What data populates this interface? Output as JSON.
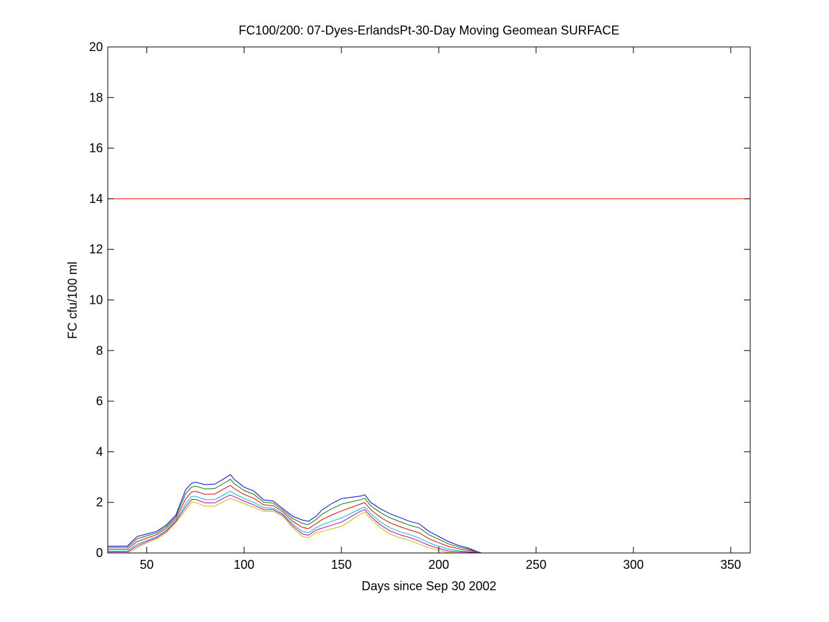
{
  "chart_data": {
    "type": "line",
    "title": "FC100/200: 07-Dyes-ErlandsPt-30-Day Moving Geomean SURFACE",
    "xlabel": "Days since Sep 30 2002",
    "ylabel": "FC cfu/100 ml",
    "xlim": [
      30,
      360
    ],
    "ylim": [
      0,
      20
    ],
    "xticks": [
      50,
      100,
      150,
      200,
      250,
      300,
      350
    ],
    "yticks": [
      0,
      2,
      4,
      6,
      8,
      10,
      12,
      14,
      16,
      18,
      20
    ],
    "grid": false,
    "threshold": {
      "y": 14,
      "color": "#ff0000"
    },
    "x": [
      30,
      40,
      45,
      50,
      55,
      60,
      65,
      70,
      73,
      75,
      80,
      85,
      90,
      93,
      95,
      100,
      105,
      110,
      115,
      120,
      125,
      130,
      133,
      137,
      140,
      145,
      150,
      155,
      160,
      162,
      165,
      170,
      175,
      180,
      185,
      190,
      195,
      200,
      205,
      210,
      215,
      220,
      222
    ],
    "series": [
      {
        "color": "#0000ff",
        "values": [
          0.27,
          0.27,
          0.65,
          0.75,
          0.85,
          1.1,
          1.5,
          2.5,
          2.75,
          2.8,
          2.7,
          2.72,
          2.95,
          3.1,
          2.9,
          2.6,
          2.45,
          2.1,
          2.05,
          1.75,
          1.45,
          1.3,
          1.25,
          1.45,
          1.7,
          1.95,
          2.15,
          2.2,
          2.25,
          2.3,
          2.0,
          1.75,
          1.55,
          1.4,
          1.25,
          1.15,
          0.85,
          0.65,
          0.45,
          0.3,
          0.2,
          0.05,
          0
        ]
      },
      {
        "color": "#008000",
        "values": [
          0.22,
          0.22,
          0.56,
          0.68,
          0.79,
          1.04,
          1.44,
          2.34,
          2.6,
          2.64,
          2.53,
          2.55,
          2.77,
          2.91,
          2.74,
          2.47,
          2.32,
          2.01,
          1.97,
          1.69,
          1.36,
          1.17,
          1.12,
          1.32,
          1.53,
          1.75,
          1.93,
          2.02,
          2.11,
          2.16,
          1.87,
          1.6,
          1.39,
          1.24,
          1.1,
          0.99,
          0.72,
          0.54,
          0.36,
          0.24,
          0.16,
          0.04,
          0
        ]
      },
      {
        "color": "#ff0000",
        "values": [
          0.15,
          0.15,
          0.45,
          0.59,
          0.72,
          0.97,
          1.37,
          2.14,
          2.41,
          2.44,
          2.32,
          2.33,
          2.55,
          2.67,
          2.54,
          2.31,
          2.16,
          1.9,
          1.87,
          1.62,
          1.25,
          1.01,
          0.96,
          1.16,
          1.32,
          1.5,
          1.66,
          1.8,
          1.94,
          1.99,
          1.71,
          1.41,
          1.19,
          1.04,
          0.91,
          0.79,
          0.56,
          0.4,
          0.26,
          0.17,
          0.11,
          0.03,
          0
        ]
      },
      {
        "color": "#00bfbf",
        "values": [
          0.08,
          0.08,
          0.34,
          0.5,
          0.64,
          0.89,
          1.29,
          1.94,
          2.23,
          2.24,
          2.11,
          2.11,
          2.32,
          2.44,
          2.34,
          2.15,
          2.0,
          1.79,
          1.77,
          1.54,
          1.14,
          0.85,
          0.8,
          1.0,
          1.11,
          1.25,
          1.38,
          1.57,
          1.76,
          1.81,
          1.55,
          1.23,
          0.99,
          0.84,
          0.73,
          0.59,
          0.4,
          0.27,
          0.15,
          0.09,
          0.06,
          0.02,
          0
        ]
      },
      {
        "color": "#bf00bf",
        "values": [
          0.04,
          0.04,
          0.27,
          0.45,
          0.6,
          0.85,
          1.25,
          1.82,
          2.11,
          2.12,
          1.98,
          1.98,
          2.19,
          2.29,
          2.22,
          2.05,
          1.9,
          1.72,
          1.71,
          1.5,
          1.07,
          0.75,
          0.7,
          0.9,
          0.98,
          1.1,
          1.22,
          1.44,
          1.66,
          1.71,
          1.45,
          1.11,
          0.87,
          0.72,
          0.61,
          0.47,
          0.3,
          0.18,
          0.08,
          0.05,
          0.03,
          0.01,
          0
        ]
      },
      {
        "color": "#bfbf00",
        "values": [
          0,
          0,
          0.2,
          0.4,
          0.55,
          0.8,
          1.2,
          1.7,
          2.0,
          2.0,
          1.85,
          1.85,
          2.05,
          2.15,
          2.1,
          1.95,
          1.8,
          1.65,
          1.65,
          1.45,
          1.0,
          0.65,
          0.6,
          0.8,
          0.85,
          0.95,
          1.05,
          1.3,
          1.55,
          1.6,
          1.35,
          1.0,
          0.75,
          0.6,
          0.5,
          0.35,
          0.2,
          0.1,
          0.02,
          0,
          0,
          0,
          0
        ]
      }
    ]
  }
}
